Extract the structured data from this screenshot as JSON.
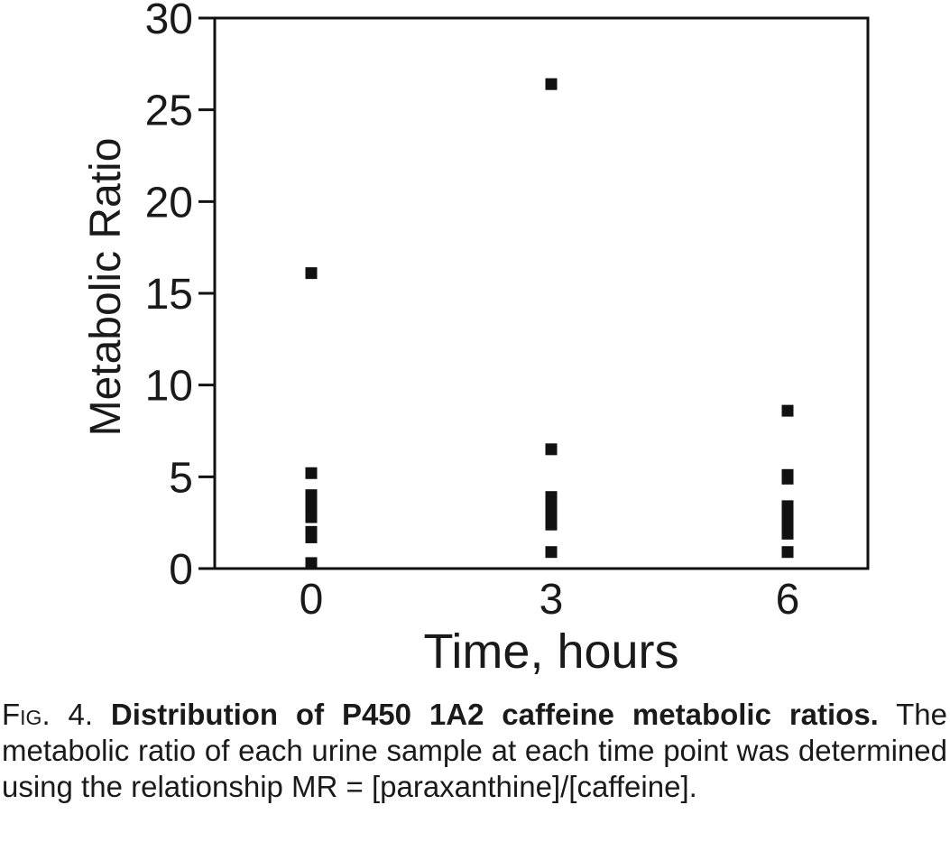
{
  "chart_data": {
    "type": "scatter",
    "title": "",
    "xlabel": "Time, hours",
    "ylabel": "Metabolic Ratio",
    "x_categories": [
      "0",
      "3",
      "6"
    ],
    "ylim": [
      0,
      30
    ],
    "yticks": [
      0,
      5,
      10,
      15,
      20,
      25,
      30
    ],
    "ytick_labels": [
      "0",
      "5",
      "10",
      "15",
      "20",
      "25",
      "30"
    ],
    "grid": false,
    "legend": null,
    "series": [
      {
        "name": "Metabolic ratio",
        "points": [
          {
            "x": "0",
            "y": 16.1
          },
          {
            "x": "0",
            "y": 5.2
          },
          {
            "x": "0",
            "y": 4.0
          },
          {
            "x": "0",
            "y": 3.6
          },
          {
            "x": "0",
            "y": 3.2
          },
          {
            "x": "0",
            "y": 2.8
          },
          {
            "x": "0",
            "y": 2.0
          },
          {
            "x": "0",
            "y": 1.8
          },
          {
            "x": "0",
            "y": 1.7
          },
          {
            "x": "0",
            "y": 0.3
          },
          {
            "x": "3",
            "y": 26.4
          },
          {
            "x": "3",
            "y": 6.5
          },
          {
            "x": "3",
            "y": 3.9
          },
          {
            "x": "3",
            "y": 3.6
          },
          {
            "x": "3",
            "y": 3.2
          },
          {
            "x": "3",
            "y": 3.0
          },
          {
            "x": "3",
            "y": 2.8
          },
          {
            "x": "3",
            "y": 2.4
          },
          {
            "x": "3",
            "y": 0.9
          },
          {
            "x": "6",
            "y": 8.6
          },
          {
            "x": "6",
            "y": 5.1
          },
          {
            "x": "6",
            "y": 4.9
          },
          {
            "x": "6",
            "y": 3.4
          },
          {
            "x": "6",
            "y": 3.1
          },
          {
            "x": "6",
            "y": 2.8
          },
          {
            "x": "6",
            "y": 2.5
          },
          {
            "x": "6",
            "y": 2.2
          },
          {
            "x": "6",
            "y": 1.9
          },
          {
            "x": "6",
            "y": 0.9
          }
        ]
      }
    ]
  },
  "caption": {
    "label": "Fig. 4.",
    "title": "Distribution of P450 1A2 caffeine metabolic ratios.",
    "text": "The metabolic ratio of each urine sample at each time point was determined using the relationship MR = [paraxanthine]/[caffeine]."
  },
  "colors": {
    "marker": "#111111",
    "axis": "#111111",
    "text": "#1a1a1a",
    "background": "#ffffff"
  }
}
